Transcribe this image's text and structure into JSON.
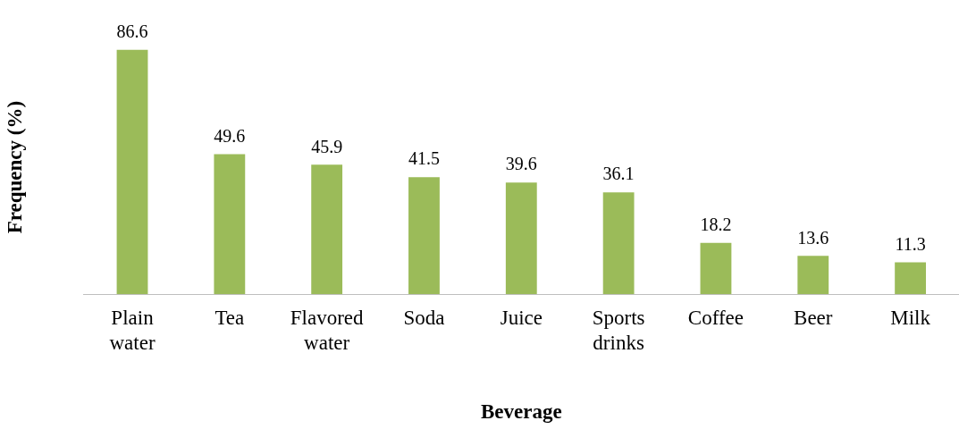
{
  "chart_data": {
    "type": "bar",
    "xlabel": "Beverage",
    "ylabel": "Frequency (%)",
    "categories": [
      "Plain water",
      "Tea",
      "Flavored water",
      "Soda",
      "Juice",
      "Sports drinks",
      "Coffee",
      "Beer",
      "Milk"
    ],
    "values": [
      86.6,
      49.6,
      45.9,
      41.5,
      39.6,
      36.1,
      18.2,
      13.6,
      11.3
    ],
    "color": "#9bbb59",
    "data_labels": true
  }
}
